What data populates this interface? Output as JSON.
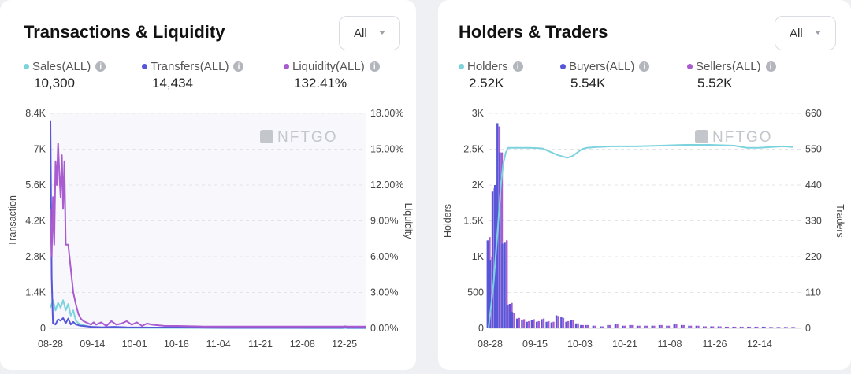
{
  "chart_data": [
    {
      "type": "line",
      "title": "Transactions & Liquidity",
      "filter": {
        "value": "All"
      },
      "watermark": "NFTGO",
      "legend": [
        {
          "label": "Sales(ALL)",
          "value": "10,300",
          "color": "#7dd3dd"
        },
        {
          "label": "Transfers(ALL)",
          "value": "14,434",
          "color": "#5656d8"
        },
        {
          "label": "Liquidity(ALL)",
          "value": "132.41%",
          "color": "#a95bd0"
        }
      ],
      "ylabel": "Transaction",
      "y2label": "Liquidity",
      "ylim": [
        0,
        8400
      ],
      "y2lim": [
        0,
        18
      ],
      "yticks": [
        "0",
        "1.4K",
        "2.8K",
        "4.2K",
        "5.6K",
        "7K",
        "8.4K"
      ],
      "y2ticks": [
        "0.00%",
        "3.00%",
        "6.00%",
        "9.00%",
        "12.00%",
        "15.00%",
        "18.00%"
      ],
      "xticks": [
        "08-28",
        "09-14",
        "10-01",
        "10-18",
        "11-04",
        "11-21",
        "12-08",
        "12-25"
      ],
      "xlim": [
        0,
        124
      ],
      "series": [
        {
          "name": "Sales(ALL)",
          "axis": "left",
          "color": "#7dd3dd",
          "x": [
            0,
            1,
            2,
            3,
            4,
            5,
            6,
            7,
            8,
            9,
            10,
            11,
            12,
            14,
            16,
            18,
            20,
            25,
            30,
            40,
            50,
            60,
            70,
            80,
            90,
            100,
            110,
            124
          ],
          "y": [
            800,
            1100,
            700,
            1000,
            800,
            1100,
            700,
            950,
            500,
            700,
            300,
            200,
            150,
            100,
            60,
            40,
            30,
            30,
            20,
            20,
            15,
            15,
            12,
            12,
            12,
            10,
            10,
            10
          ]
        },
        {
          "name": "Transfers(ALL)",
          "axis": "left",
          "color": "#5656d8",
          "x": [
            0,
            0.5,
            1,
            2,
            3,
            4,
            5,
            6,
            7,
            8,
            9,
            10,
            11,
            12,
            14,
            16,
            18,
            20,
            25,
            30,
            40,
            50,
            60,
            70,
            80,
            90,
            100,
            110,
            115,
            116,
            117,
            124
          ],
          "y": [
            8100,
            2000,
            200,
            150,
            350,
            300,
            400,
            200,
            380,
            150,
            250,
            150,
            120,
            100,
            80,
            60,
            50,
            40,
            60,
            40,
            30,
            30,
            25,
            20,
            20,
            20,
            20,
            20,
            20,
            80,
            20,
            20
          ]
        },
        {
          "name": "Liquidity(ALL)",
          "axis": "right",
          "color": "#a95bd0",
          "x": [
            0,
            0.5,
            1,
            1.5,
            2,
            2.5,
            3,
            3.5,
            4,
            4.5,
            5,
            5.5,
            6,
            7,
            8,
            9,
            10,
            11,
            12,
            13,
            14,
            15,
            16,
            17,
            18,
            20,
            22,
            24,
            26,
            28,
            30,
            32,
            34,
            36,
            38,
            40,
            45,
            50,
            60,
            70,
            80,
            90,
            100,
            110,
            124
          ],
          "y": [
            10,
            6,
            11,
            7,
            14,
            12,
            15.5,
            13,
            11,
            14.5,
            10,
            14,
            7,
            7,
            5,
            3,
            2,
            1.2,
            0.8,
            0.6,
            0.5,
            0.4,
            0.3,
            0.5,
            0.3,
            0.5,
            0.2,
            0.6,
            0.3,
            0.4,
            0.6,
            0.3,
            0.5,
            0.2,
            0.4,
            0.3,
            0.2,
            0.2,
            0.15,
            0.15,
            0.15,
            0.15,
            0.15,
            0.15,
            0.15
          ]
        }
      ]
    },
    {
      "type": "bar",
      "title": "Holders & Traders",
      "filter": {
        "value": "All"
      },
      "watermark": "NFTGO",
      "legend": [
        {
          "label": "Holders",
          "value": "2.52K",
          "color": "#7dd3dd"
        },
        {
          "label": "Buyers(ALL)",
          "value": "5.54K",
          "color": "#5656d8"
        },
        {
          "label": "Sellers(ALL)",
          "value": "5.52K",
          "color": "#a95bd0"
        }
      ],
      "ylabel": "Holders",
      "y2label": "Traders",
      "ylim": [
        0,
        3000
      ],
      "y2lim": [
        0,
        660
      ],
      "yticks": [
        "0",
        "500",
        "1K",
        "1.5K",
        "2K",
        "2.5K",
        "3K"
      ],
      "y2ticks": [
        "0",
        "110",
        "220",
        "330",
        "440",
        "550",
        "660"
      ],
      "xticks": [
        "08-28",
        "09-15",
        "10-03",
        "10-21",
        "11-08",
        "11-26",
        "12-14"
      ],
      "xlim": [
        0,
        127
      ],
      "bars": {
        "x": [
          0,
          1,
          2,
          3,
          4,
          5,
          6,
          7,
          8,
          9,
          10,
          12,
          14,
          16,
          18,
          20,
          22,
          24,
          26,
          28,
          30,
          32,
          34,
          36,
          38,
          40,
          43,
          46,
          49,
          52,
          55,
          58,
          61,
          64,
          67,
          70,
          73,
          76,
          79,
          82,
          85,
          88,
          91,
          94,
          97,
          100,
          103,
          106,
          109,
          112,
          115,
          118,
          121,
          124
        ],
        "buyers": [
          270,
          210,
          420,
          440,
          630,
          540,
          260,
          265,
          70,
          75,
          50,
          30,
          25,
          20,
          25,
          20,
          28,
          20,
          18,
          40,
          35,
          20,
          25,
          15,
          10,
          10,
          8,
          6,
          10,
          12,
          8,
          10,
          8,
          8,
          8,
          10,
          8,
          12,
          10,
          8,
          8,
          6,
          6,
          6,
          5,
          5,
          5,
          5,
          5,
          5,
          4,
          4,
          4,
          4
        ],
        "sellers": [
          280,
          220,
          430,
          450,
          620,
          540,
          265,
          270,
          72,
          78,
          48,
          32,
          28,
          22,
          28,
          22,
          30,
          22,
          20,
          38,
          32,
          22,
          26,
          15,
          10,
          10,
          8,
          6,
          10,
          12,
          8,
          10,
          8,
          8,
          8,
          10,
          8,
          12,
          10,
          8,
          8,
          6,
          6,
          6,
          5,
          5,
          5,
          5,
          5,
          5,
          4,
          4,
          4,
          4
        ]
      },
      "series": [
        {
          "name": "Holders",
          "axis": "left",
          "color": "#7dd3dd",
          "x": [
            0,
            2,
            4,
            5,
            6,
            7,
            8,
            10,
            12,
            16,
            20,
            22,
            24,
            26,
            28,
            30,
            32,
            34,
            36,
            38,
            40,
            44,
            50,
            60,
            70,
            80,
            90,
            100,
            105,
            110,
            115,
            120,
            124
          ],
          "y": [
            0,
            600,
            1500,
            2000,
            2300,
            2450,
            2520,
            2520,
            2520,
            2520,
            2515,
            2510,
            2480,
            2450,
            2420,
            2400,
            2380,
            2400,
            2450,
            2500,
            2520,
            2530,
            2540,
            2540,
            2550,
            2560,
            2560,
            2550,
            2520,
            2520,
            2530,
            2540,
            2530
          ]
        }
      ]
    }
  ]
}
